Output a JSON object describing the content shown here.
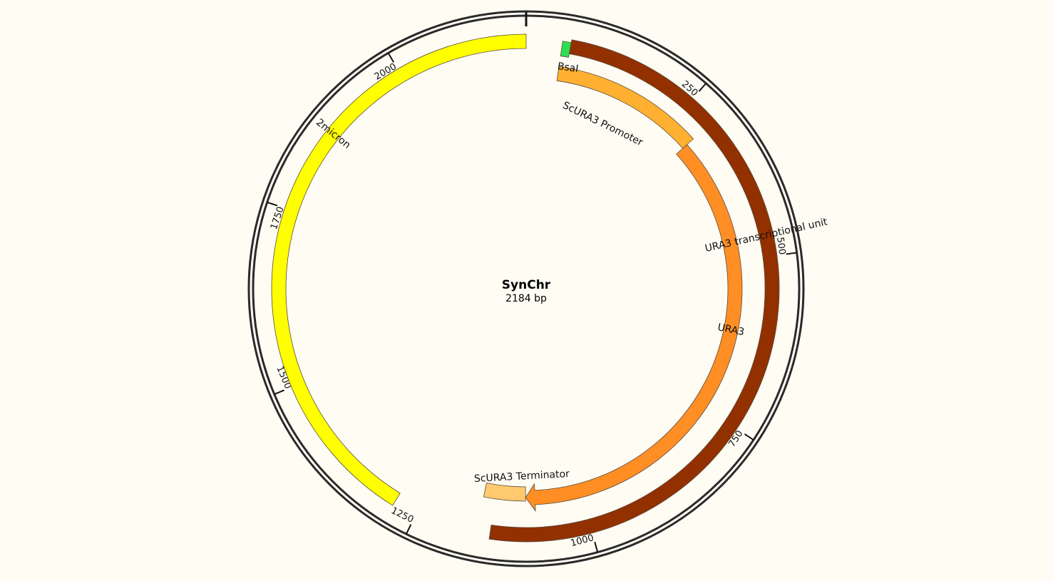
{
  "plasmid": {
    "name": "SynChr",
    "length_label": "2184 bp",
    "length_bp": 2184
  },
  "ticks": [
    {
      "bp": 250,
      "label": "250"
    },
    {
      "bp": 500,
      "label": "500"
    },
    {
      "bp": 750,
      "label": "750"
    },
    {
      "bp": 1000,
      "label": "1000"
    },
    {
      "bp": 1250,
      "label": "1250"
    },
    {
      "bp": 1500,
      "label": "1500"
    },
    {
      "bp": 1750,
      "label": "1750"
    },
    {
      "bp": 2000,
      "label": "2000"
    }
  ],
  "features": [
    {
      "name": "BsaI",
      "type": "site",
      "start_bp": 51,
      "end_bp": 63,
      "color": "#2ee04f"
    },
    {
      "name": "URA3 transcriptional unit",
      "type": "unit",
      "start_bp": 63,
      "end_bp": 1143,
      "color": "#923000"
    },
    {
      "name": "ScURA3 Promoter",
      "type": "promoter",
      "start_bp": 51,
      "end_bp": 292,
      "color": "#ffb030"
    },
    {
      "name": "URA3",
      "type": "cds",
      "start_bp": 292,
      "end_bp": 1093,
      "color": "#ff8e25",
      "direction": "forward"
    },
    {
      "name": "ScURA3 Terminator",
      "type": "terminator",
      "start_bp": 1093,
      "end_bp": 1162,
      "color": "#ffc96e"
    },
    {
      "name": "2micron",
      "type": "origin",
      "start_bp": 1284,
      "end_bp": 2184,
      "color": "#ffff00"
    }
  ]
}
